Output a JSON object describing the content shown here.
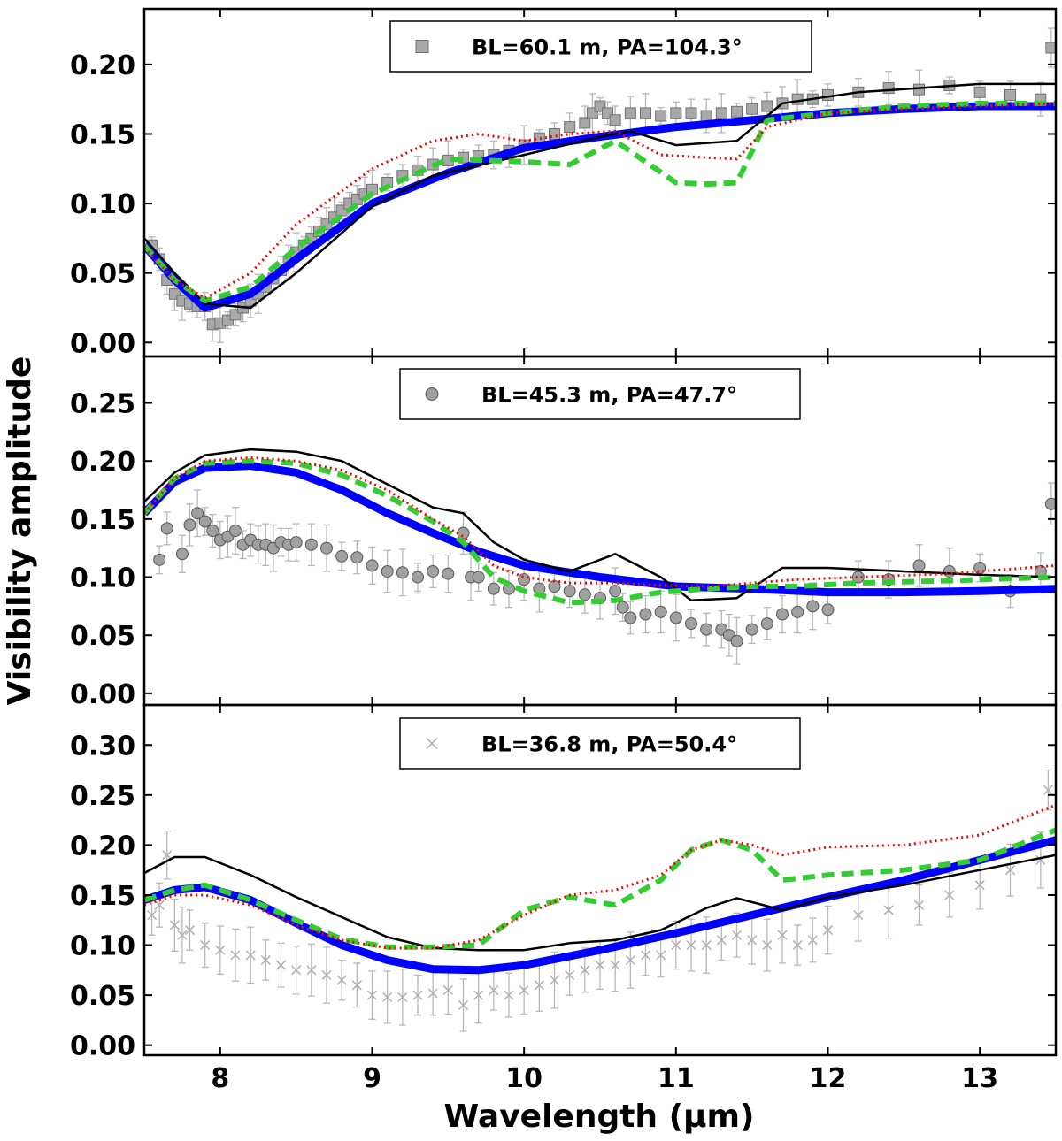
{
  "figure": {
    "ylabel": "Visibility amplitude",
    "xlabel": "Wavelength (μm)"
  },
  "chart_data": [
    {
      "type": "line",
      "legend": "BL=60.1 m, PA=104.3°",
      "marker": "square",
      "xlim": [
        7.5,
        13.5
      ],
      "ylim": [
        -0.01,
        0.24
      ],
      "x_ticks": [
        8,
        9,
        10,
        11,
        12,
        13
      ],
      "y_ticks": [
        0.0,
        0.05,
        0.1,
        0.15,
        0.2
      ],
      "y_tick_labels": [
        "0.00",
        "0.05",
        "0.10",
        "0.15",
        "0.20"
      ],
      "observed": {
        "x": [
          7.55,
          7.6,
          7.65,
          7.7,
          7.75,
          7.8,
          7.85,
          7.9,
          7.95,
          8.0,
          8.05,
          8.1,
          8.15,
          8.2,
          8.25,
          8.3,
          8.35,
          8.4,
          8.45,
          8.5,
          8.55,
          8.6,
          8.65,
          8.7,
          8.75,
          8.8,
          8.85,
          8.9,
          8.95,
          9.0,
          9.1,
          9.2,
          9.3,
          9.4,
          9.5,
          9.6,
          9.7,
          9.8,
          9.9,
          10.0,
          10.1,
          10.2,
          10.3,
          10.4,
          10.45,
          10.5,
          10.55,
          10.6,
          10.7,
          10.8,
          10.9,
          11.0,
          11.1,
          11.2,
          11.3,
          11.4,
          11.5,
          11.6,
          11.7,
          11.8,
          11.9,
          12.0,
          12.2,
          12.4,
          12.6,
          12.8,
          13.0,
          13.2,
          13.4,
          13.47
        ],
        "y": [
          0.07,
          0.06,
          0.045,
          0.035,
          0.03,
          0.028,
          0.026,
          0.026,
          0.013,
          0.014,
          0.016,
          0.02,
          0.025,
          0.03,
          0.035,
          0.04,
          0.046,
          0.052,
          0.058,
          0.065,
          0.07,
          0.075,
          0.08,
          0.085,
          0.09,
          0.095,
          0.1,
          0.103,
          0.107,
          0.11,
          0.115,
          0.12,
          0.124,
          0.128,
          0.131,
          0.133,
          0.134,
          0.135,
          0.138,
          0.142,
          0.147,
          0.15,
          0.155,
          0.158,
          0.165,
          0.17,
          0.165,
          0.16,
          0.165,
          0.165,
          0.163,
          0.165,
          0.165,
          0.163,
          0.165,
          0.166,
          0.168,
          0.17,
          0.172,
          0.175,
          0.175,
          0.178,
          0.18,
          0.183,
          0.182,
          0.185,
          0.18,
          0.178,
          0.175,
          0.212
        ]
      },
      "series": [
        {
          "style": "solid-black",
          "color": "#000000",
          "x": [
            7.5,
            7.7,
            7.9,
            8.2,
            8.5,
            9.0,
            9.4,
            10.0,
            10.5,
            10.7,
            11.0,
            11.4,
            11.7,
            12.2,
            13.0,
            13.5
          ],
          "y": [
            0.075,
            0.05,
            0.028,
            0.025,
            0.05,
            0.098,
            0.12,
            0.135,
            0.148,
            0.152,
            0.142,
            0.145,
            0.172,
            0.18,
            0.186,
            0.186
          ]
        },
        {
          "style": "thick-blue",
          "color": "#0000ff",
          "x": [
            7.5,
            7.7,
            7.9,
            8.2,
            8.5,
            9.0,
            9.5,
            10.0,
            10.5,
            11.0,
            11.5,
            12.0,
            12.5,
            13.0,
            13.5
          ],
          "y": [
            0.07,
            0.045,
            0.025,
            0.035,
            0.06,
            0.1,
            0.122,
            0.14,
            0.148,
            0.155,
            0.16,
            0.165,
            0.168,
            0.17,
            0.17
          ]
        },
        {
          "style": "dashed-green",
          "color": "#33cc33",
          "x": [
            7.5,
            7.7,
            7.9,
            8.2,
            8.5,
            9.0,
            9.5,
            10.0,
            10.3,
            10.6,
            10.8,
            11.0,
            11.2,
            11.4,
            11.6,
            12.0,
            12.5,
            13.0,
            13.5
          ],
          "y": [
            0.07,
            0.045,
            0.03,
            0.04,
            0.068,
            0.107,
            0.132,
            0.13,
            0.128,
            0.145,
            0.13,
            0.115,
            0.114,
            0.115,
            0.16,
            0.165,
            0.17,
            0.172,
            0.172
          ]
        },
        {
          "style": "dotted-red",
          "color": "#ff0000",
          "x": [
            7.5,
            7.7,
            7.9,
            8.2,
            8.5,
            9.0,
            9.4,
            9.7,
            10.0,
            10.3,
            10.6,
            10.9,
            11.2,
            11.4,
            11.6,
            12.0,
            12.5,
            13.0,
            13.5
          ],
          "y": [
            0.068,
            0.045,
            0.032,
            0.05,
            0.085,
            0.125,
            0.145,
            0.15,
            0.145,
            0.15,
            0.152,
            0.135,
            0.133,
            0.132,
            0.155,
            0.165,
            0.168,
            0.17,
            0.172
          ]
        }
      ]
    },
    {
      "type": "line",
      "legend": "BL=45.3 m, PA=47.7°",
      "marker": "circle",
      "xlim": [
        7.5,
        13.5
      ],
      "ylim": [
        -0.01,
        0.29
      ],
      "x_ticks": [
        8,
        9,
        10,
        11,
        12,
        13
      ],
      "y_ticks": [
        0.0,
        0.05,
        0.1,
        0.15,
        0.2,
        0.25
      ],
      "y_tick_labels": [
        "0.00",
        "0.05",
        "0.10",
        "0.15",
        "0.20",
        "0.25"
      ],
      "observed": {
        "x": [
          7.6,
          7.65,
          7.75,
          7.8,
          7.85,
          7.9,
          7.95,
          8.0,
          8.05,
          8.1,
          8.15,
          8.2,
          8.25,
          8.3,
          8.35,
          8.4,
          8.45,
          8.5,
          8.6,
          8.7,
          8.8,
          8.9,
          9.0,
          9.1,
          9.2,
          9.3,
          9.4,
          9.5,
          9.6,
          9.65,
          9.7,
          9.8,
          9.9,
          10.0,
          10.1,
          10.2,
          10.3,
          10.4,
          10.5,
          10.6,
          10.65,
          10.7,
          10.8,
          10.9,
          11.0,
          11.1,
          11.2,
          11.3,
          11.35,
          11.4,
          11.5,
          11.6,
          11.7,
          11.8,
          11.9,
          12.0,
          12.2,
          12.4,
          12.6,
          12.8,
          13.0,
          13.2,
          13.4,
          13.47
        ],
        "y": [
          0.115,
          0.142,
          0.12,
          0.145,
          0.155,
          0.148,
          0.14,
          0.132,
          0.135,
          0.14,
          0.128,
          0.132,
          0.128,
          0.128,
          0.125,
          0.13,
          0.128,
          0.13,
          0.128,
          0.125,
          0.118,
          0.117,
          0.11,
          0.105,
          0.104,
          0.1,
          0.105,
          0.103,
          0.138,
          0.1,
          0.1,
          0.09,
          0.09,
          0.098,
          0.09,
          0.092,
          0.088,
          0.085,
          0.082,
          0.088,
          0.074,
          0.065,
          0.068,
          0.07,
          0.065,
          0.06,
          0.055,
          0.055,
          0.05,
          0.045,
          0.055,
          0.06,
          0.068,
          0.07,
          0.075,
          0.072,
          0.1,
          0.098,
          0.11,
          0.105,
          0.108,
          0.088,
          0.105,
          0.163
        ]
      },
      "series": [
        {
          "style": "solid-black",
          "color": "#000000",
          "x": [
            7.5,
            7.7,
            7.9,
            8.2,
            8.5,
            8.8,
            9.1,
            9.4,
            9.6,
            9.8,
            10.0,
            10.3,
            10.6,
            10.9,
            11.1,
            11.4,
            11.7,
            12.0,
            12.5,
            13.0,
            13.5
          ],
          "y": [
            0.165,
            0.19,
            0.205,
            0.21,
            0.208,
            0.2,
            0.18,
            0.16,
            0.155,
            0.13,
            0.115,
            0.105,
            0.12,
            0.1,
            0.08,
            0.082,
            0.108,
            0.108,
            0.105,
            0.102,
            0.1
          ]
        },
        {
          "style": "thick-blue",
          "color": "#0000ff",
          "x": [
            7.5,
            7.7,
            7.9,
            8.2,
            8.5,
            8.8,
            9.1,
            9.4,
            9.7,
            10.0,
            10.5,
            11.0,
            11.5,
            12.0,
            12.5,
            13.0,
            13.5
          ],
          "y": [
            0.155,
            0.182,
            0.194,
            0.196,
            0.19,
            0.175,
            0.155,
            0.138,
            0.122,
            0.11,
            0.1,
            0.092,
            0.09,
            0.087,
            0.087,
            0.088,
            0.09
          ]
        },
        {
          "style": "dashed-green",
          "color": "#33cc33",
          "x": [
            7.5,
            7.7,
            7.9,
            8.2,
            8.5,
            8.8,
            9.1,
            9.4,
            9.6,
            9.8,
            10.0,
            10.3,
            10.6,
            10.9,
            11.2,
            11.5,
            11.8,
            12.2,
            12.8,
            13.5
          ],
          "y": [
            0.155,
            0.185,
            0.198,
            0.2,
            0.198,
            0.188,
            0.17,
            0.148,
            0.13,
            0.1,
            0.088,
            0.078,
            0.08,
            0.087,
            0.09,
            0.092,
            0.092,
            0.095,
            0.097,
            0.1
          ]
        },
        {
          "style": "dotted-red",
          "color": "#ff0000",
          "x": [
            7.5,
            7.7,
            7.9,
            8.2,
            8.5,
            8.8,
            9.1,
            9.4,
            9.6,
            9.8,
            10.0,
            10.3,
            10.6,
            10.9,
            11.2,
            11.5,
            11.8,
            12.2,
            12.8,
            13.5
          ],
          "y": [
            0.155,
            0.185,
            0.2,
            0.203,
            0.2,
            0.192,
            0.175,
            0.15,
            0.135,
            0.11,
            0.1,
            0.095,
            0.095,
            0.093,
            0.092,
            0.095,
            0.098,
            0.1,
            0.103,
            0.11
          ]
        }
      ]
    },
    {
      "type": "line",
      "legend": "BL=36.8 m, PA=50.4°",
      "marker": "cross",
      "xlim": [
        7.5,
        13.5
      ],
      "ylim": [
        -0.01,
        0.34
      ],
      "x_ticks": [
        8,
        9,
        10,
        11,
        12,
        13
      ],
      "y_ticks": [
        0.0,
        0.05,
        0.1,
        0.15,
        0.2,
        0.25,
        0.3
      ],
      "y_tick_labels": [
        "0.00",
        "0.05",
        "0.10",
        "0.15",
        "0.20",
        "0.25",
        "0.30"
      ],
      "x_tick_labels": [
        "8",
        "9",
        "10",
        "11",
        "12",
        "13"
      ],
      "observed": {
        "x": [
          7.55,
          7.6,
          7.65,
          7.7,
          7.75,
          7.8,
          7.9,
          8.0,
          8.1,
          8.2,
          8.3,
          8.4,
          8.5,
          8.6,
          8.7,
          8.8,
          8.9,
          9.0,
          9.1,
          9.2,
          9.3,
          9.4,
          9.5,
          9.6,
          9.7,
          9.8,
          9.9,
          10.0,
          10.1,
          10.2,
          10.3,
          10.4,
          10.5,
          10.6,
          10.7,
          10.8,
          10.9,
          11.0,
          11.1,
          11.2,
          11.3,
          11.4,
          11.5,
          11.6,
          11.7,
          11.8,
          11.9,
          12.0,
          12.2,
          12.4,
          12.6,
          12.8,
          13.0,
          13.2,
          13.4,
          13.45
        ],
        "y": [
          0.13,
          0.14,
          0.19,
          0.12,
          0.11,
          0.115,
          0.1,
          0.095,
          0.09,
          0.09,
          0.085,
          0.08,
          0.075,
          0.075,
          0.07,
          0.065,
          0.06,
          0.05,
          0.048,
          0.048,
          0.05,
          0.052,
          0.055,
          0.04,
          0.05,
          0.055,
          0.05,
          0.055,
          0.06,
          0.065,
          0.07,
          0.075,
          0.08,
          0.08,
          0.085,
          0.09,
          0.09,
          0.1,
          0.1,
          0.1,
          0.105,
          0.11,
          0.105,
          0.1,
          0.11,
          0.1,
          0.105,
          0.115,
          0.13,
          0.135,
          0.14,
          0.15,
          0.16,
          0.175,
          0.185,
          0.255
        ]
      },
      "series": [
        {
          "style": "solid-black",
          "color": "#000000",
          "x": [
            7.5,
            7.7,
            7.9,
            8.2,
            8.5,
            8.8,
            9.1,
            9.4,
            9.7,
            10.0,
            10.3,
            10.6,
            10.9,
            11.2,
            11.4,
            11.7,
            12.0,
            12.5,
            13.0,
            13.5
          ],
          "y": [
            0.172,
            0.188,
            0.188,
            0.17,
            0.148,
            0.128,
            0.108,
            0.097,
            0.095,
            0.095,
            0.102,
            0.105,
            0.115,
            0.137,
            0.147,
            0.135,
            0.148,
            0.16,
            0.175,
            0.19
          ]
        },
        {
          "style": "thick-blue",
          "color": "#0000ff",
          "x": [
            7.5,
            7.7,
            7.9,
            8.2,
            8.5,
            8.8,
            9.1,
            9.4,
            9.7,
            10.0,
            10.5,
            11.0,
            11.5,
            12.0,
            12.5,
            13.0,
            13.5
          ],
          "y": [
            0.145,
            0.155,
            0.158,
            0.145,
            0.122,
            0.1,
            0.085,
            0.076,
            0.075,
            0.08,
            0.095,
            0.112,
            0.13,
            0.148,
            0.165,
            0.185,
            0.205
          ]
        },
        {
          "style": "dashed-green",
          "color": "#33cc33",
          "x": [
            7.5,
            7.7,
            7.9,
            8.2,
            8.5,
            8.8,
            9.1,
            9.4,
            9.7,
            10.0,
            10.3,
            10.6,
            10.9,
            11.1,
            11.3,
            11.5,
            11.7,
            12.0,
            12.5,
            13.0,
            13.5
          ],
          "y": [
            0.145,
            0.155,
            0.16,
            0.145,
            0.125,
            0.106,
            0.098,
            0.098,
            0.1,
            0.135,
            0.148,
            0.14,
            0.165,
            0.195,
            0.205,
            0.195,
            0.165,
            0.17,
            0.175,
            0.185,
            0.215
          ]
        },
        {
          "style": "dotted-red",
          "color": "#ff0000",
          "x": [
            7.5,
            7.7,
            7.9,
            8.2,
            8.5,
            8.8,
            9.1,
            9.4,
            9.7,
            10.0,
            10.3,
            10.6,
            10.9,
            11.1,
            11.3,
            11.5,
            11.7,
            12.0,
            12.5,
            13.0,
            13.5
          ],
          "y": [
            0.14,
            0.15,
            0.15,
            0.14,
            0.12,
            0.105,
            0.097,
            0.097,
            0.105,
            0.13,
            0.15,
            0.155,
            0.17,
            0.195,
            0.205,
            0.2,
            0.19,
            0.198,
            0.2,
            0.21,
            0.24
          ]
        }
      ]
    }
  ]
}
